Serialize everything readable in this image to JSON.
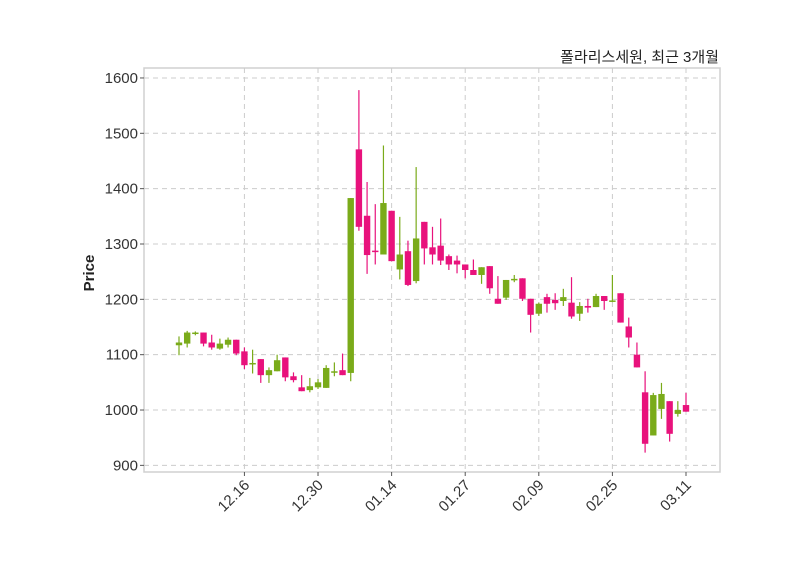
{
  "chart_data": {
    "type": "candlestick",
    "title": "폴라리스세원, 최근 3개월",
    "xlabel": "",
    "ylabel": "Price",
    "ylim": [
      888,
      1618
    ],
    "yticks": [
      900,
      1000,
      1100,
      1200,
      1300,
      1400,
      1500,
      1600
    ],
    "xticks": [
      {
        "index": 8,
        "label": "12.16"
      },
      {
        "index": 17,
        "label": "12.30"
      },
      {
        "index": 26,
        "label": "01.14"
      },
      {
        "index": 35,
        "label": "01.27"
      },
      {
        "index": 44,
        "label": "02.09"
      },
      {
        "index": 53,
        "label": "02.25"
      },
      {
        "index": 62,
        "label": "03.11"
      }
    ],
    "grid": true,
    "colors": {
      "up": "#7aab1a",
      "down": "#e8127c",
      "grid": "#cccccc"
    },
    "ohlc": [
      [
        1117,
        1133,
        1099,
        1122
      ],
      [
        1120,
        1143,
        1113,
        1140
      ],
      [
        1139,
        1142,
        1135,
        1140
      ],
      [
        1140,
        1140,
        1115,
        1120
      ],
      [
        1122,
        1136,
        1109,
        1113
      ],
      [
        1111,
        1129,
        1109,
        1120
      ],
      [
        1118,
        1131,
        1113,
        1127
      ],
      [
        1127,
        1127,
        1099,
        1102
      ],
      [
        1106,
        1113,
        1074,
        1081
      ],
      [
        1083,
        1109,
        1066,
        1085
      ],
      [
        1092,
        1092,
        1049,
        1063
      ],
      [
        1063,
        1077,
        1049,
        1072
      ],
      [
        1070,
        1100,
        1070,
        1090
      ],
      [
        1095,
        1095,
        1052,
        1059
      ],
      [
        1061,
        1068,
        1050,
        1054
      ],
      [
        1041,
        1063,
        1034,
        1034
      ],
      [
        1036,
        1058,
        1032,
        1043
      ],
      [
        1041,
        1056,
        1038,
        1050
      ],
      [
        1040,
        1081,
        1040,
        1076
      ],
      [
        1068,
        1086,
        1061,
        1070
      ],
      [
        1072,
        1102,
        1063,
        1063
      ],
      [
        1067,
        1383,
        1052,
        1383
      ],
      [
        1471,
        1578,
        1324,
        1331
      ],
      [
        1351,
        1412,
        1246,
        1280
      ],
      [
        1288,
        1372,
        1263,
        1286
      ],
      [
        1281,
        1478,
        1281,
        1374
      ],
      [
        1360,
        1360,
        1269,
        1269
      ],
      [
        1254,
        1349,
        1236,
        1281
      ],
      [
        1287,
        1306,
        1224,
        1226
      ],
      [
        1233,
        1439,
        1229,
        1310
      ],
      [
        1340,
        1340,
        1263,
        1292
      ],
      [
        1294,
        1331,
        1263,
        1281
      ],
      [
        1297,
        1346,
        1262,
        1270
      ],
      [
        1278,
        1281,
        1253,
        1263
      ],
      [
        1270,
        1279,
        1247,
        1263
      ],
      [
        1263,
        1263,
        1238,
        1253
      ],
      [
        1253,
        1272,
        1244,
        1244
      ],
      [
        1244,
        1258,
        1228,
        1258
      ],
      [
        1260,
        1260,
        1210,
        1220
      ],
      [
        1201,
        1242,
        1192,
        1192
      ],
      [
        1203,
        1235,
        1199,
        1235
      ],
      [
        1235,
        1244,
        1231,
        1237
      ],
      [
        1238,
        1238,
        1197,
        1201
      ],
      [
        1201,
        1201,
        1140,
        1172
      ],
      [
        1174,
        1194,
        1170,
        1192
      ],
      [
        1204,
        1210,
        1176,
        1192
      ],
      [
        1199,
        1211,
        1181,
        1193
      ],
      [
        1197,
        1219,
        1188,
        1204
      ],
      [
        1194,
        1240,
        1165,
        1169
      ],
      [
        1174,
        1195,
        1161,
        1188
      ],
      [
        1188,
        1201,
        1176,
        1185
      ],
      [
        1186,
        1210,
        1186,
        1206
      ],
      [
        1206,
        1206,
        1181,
        1197
      ],
      [
        1196,
        1244,
        1195,
        1198
      ],
      [
        1211,
        1211,
        1158,
        1158
      ],
      [
        1151,
        1167,
        1113,
        1131
      ],
      [
        1100,
        1122,
        1077,
        1077
      ],
      [
        1032,
        1070,
        923,
        939
      ],
      [
        954,
        1031,
        954,
        1027
      ],
      [
        1002,
        1049,
        984,
        1029
      ],
      [
        1016,
        1016,
        943,
        957
      ],
      [
        993,
        1016,
        988,
        1000
      ],
      [
        1009,
        1031,
        997,
        997
      ]
    ]
  }
}
